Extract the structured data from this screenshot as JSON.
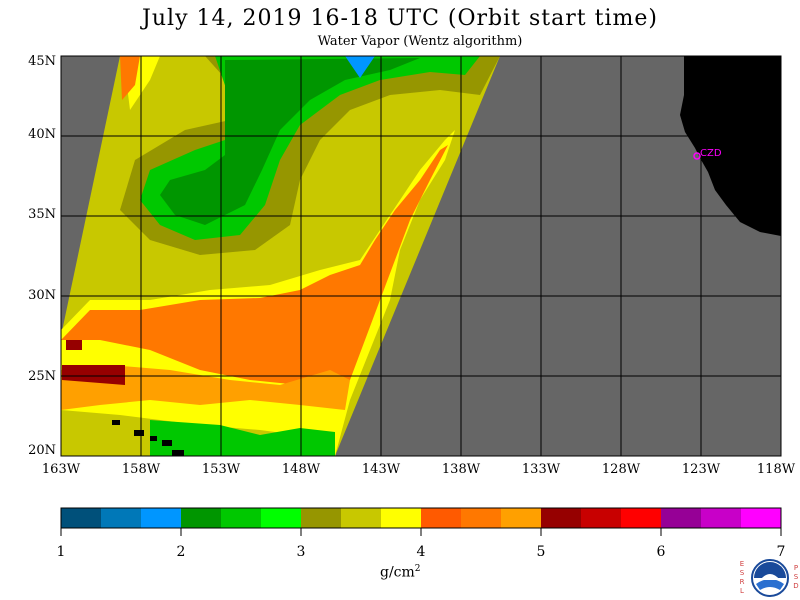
{
  "header": {
    "title": "July 14, 2019  16-18 UTC  (Orbit start time)",
    "subtitle": "Water Vapor (Wentz algorithm)"
  },
  "map": {
    "lat_labels": [
      "45N",
      "40N",
      "35N",
      "30N",
      "25N",
      "20N"
    ],
    "lon_labels": [
      "163W",
      "158W",
      "153W",
      "148W",
      "143W",
      "138W",
      "133W",
      "128W",
      "123W",
      "118W"
    ],
    "station_label": "CZD",
    "colors": {
      "land": "#000000",
      "no_data": "#666666",
      "station": "#ff00ff",
      "grid": "#000000"
    }
  },
  "colorbar": {
    "tick_labels": [
      "1",
      "2",
      "3",
      "4",
      "5",
      "6",
      "7"
    ],
    "units": "g/cm",
    "units_superscript": "2",
    "colors": [
      "#00507a",
      "#0078b8",
      "#0096ff",
      "#009600",
      "#00c800",
      "#00ff00",
      "#969600",
      "#c8c800",
      "#ffff00",
      "#ff5a00",
      "#ff7800",
      "#ffa000",
      "#960000",
      "#c80000",
      "#ff0000",
      "#960096",
      "#c800c8",
      "#ff00ff"
    ]
  },
  "logo": {
    "icon": "noaa-logo",
    "left_letters": [
      "E",
      "S",
      "R",
      "L"
    ],
    "right_letters": [
      "P",
      "S",
      "D"
    ]
  }
}
